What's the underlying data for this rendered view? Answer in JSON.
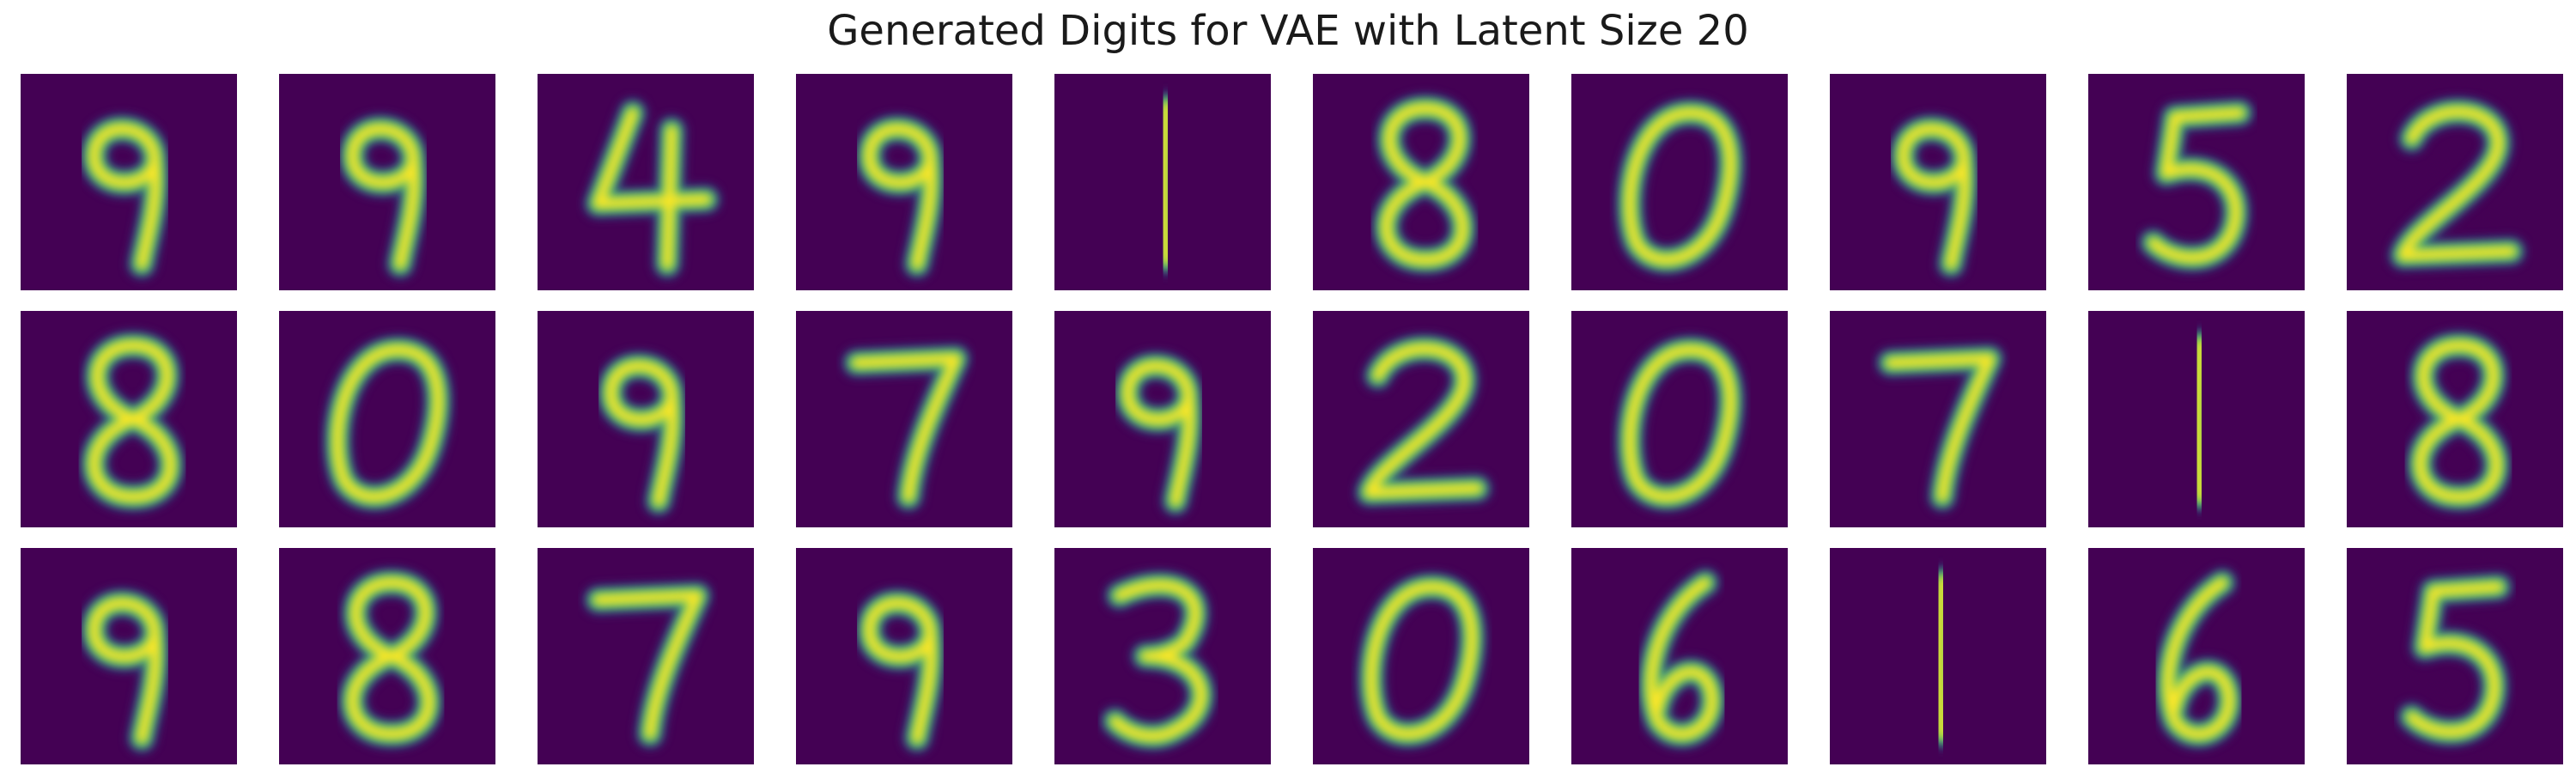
{
  "title": "Generated Digits for VAE with Latent Size 20",
  "colormap": {
    "name": "viridis",
    "background": "#440154",
    "stops": [
      "#440154",
      "#3b528b",
      "#21918c",
      "#5ec962",
      "#fde725"
    ]
  },
  "layout": {
    "rows": 3,
    "cols": 10
  },
  "samples": [
    {
      "digit": "9"
    },
    {
      "digit": "9"
    },
    {
      "digit": "4"
    },
    {
      "digit": "9"
    },
    {
      "digit": "1"
    },
    {
      "digit": "8"
    },
    {
      "digit": "0"
    },
    {
      "digit": "9"
    },
    {
      "digit": "5"
    },
    {
      "digit": "2"
    },
    {
      "digit": "8"
    },
    {
      "digit": "0"
    },
    {
      "digit": "9"
    },
    {
      "digit": "7"
    },
    {
      "digit": "9"
    },
    {
      "digit": "2"
    },
    {
      "digit": "0"
    },
    {
      "digit": "7"
    },
    {
      "digit": "1"
    },
    {
      "digit": "8"
    },
    {
      "digit": "9"
    },
    {
      "digit": "8"
    },
    {
      "digit": "7"
    },
    {
      "digit": "9"
    },
    {
      "digit": "3"
    },
    {
      "digit": "0"
    },
    {
      "digit": "6"
    },
    {
      "digit": "1"
    },
    {
      "digit": "6"
    },
    {
      "digit": "5"
    }
  ]
}
